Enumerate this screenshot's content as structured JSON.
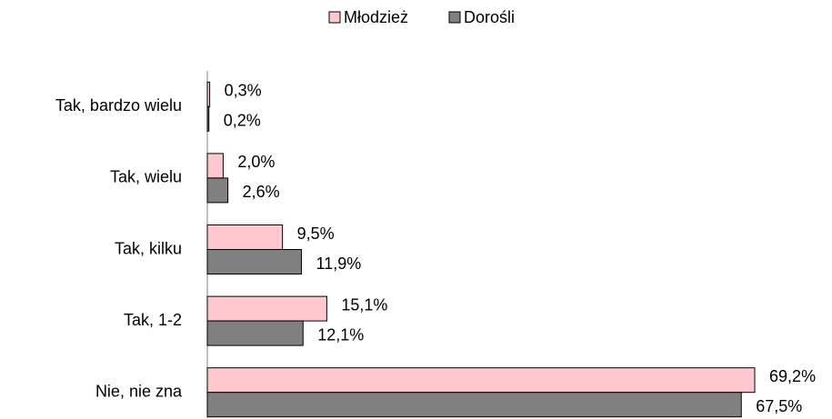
{
  "chart_data": {
    "type": "bar",
    "orientation": "horizontal",
    "categories": [
      "Tak, bardzo wielu",
      "Tak, wielu",
      "Tak, kilku",
      "Tak, 1-2",
      "Nie, nie zna"
    ],
    "series": [
      {
        "name": "Młodzież",
        "color": "#ffc7ce",
        "values": [
          0.3,
          2.0,
          9.5,
          15.1,
          69.2
        ],
        "value_labels": [
          "0,3%",
          "2,0%",
          "9,5%",
          "15,1%",
          "69,2%"
        ]
      },
      {
        "name": "Dorośli",
        "color": "#808080",
        "values": [
          0.2,
          2.6,
          11.9,
          12.1,
          67.5
        ],
        "value_labels": [
          "0,2%",
          "2,6%",
          "11,9%",
          "12,1%",
          "67,5%"
        ]
      }
    ],
    "xlim": [
      0,
      70
    ],
    "legend": "top"
  }
}
